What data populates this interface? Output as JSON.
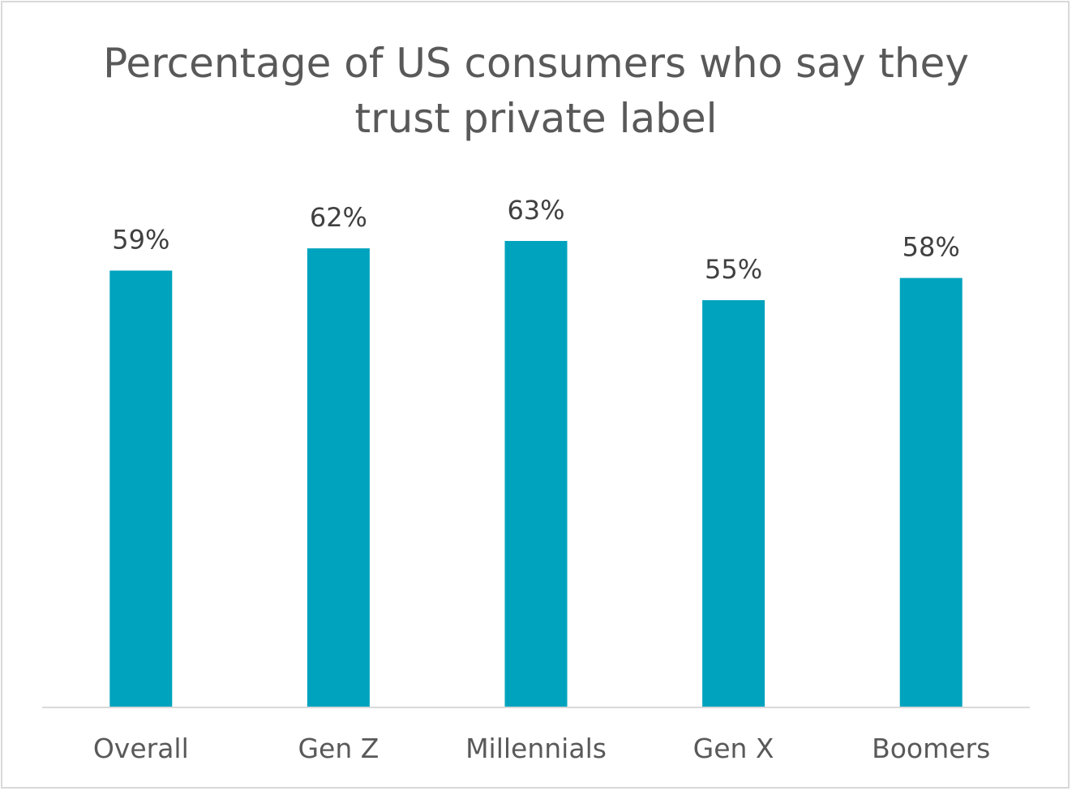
{
  "chart_data": {
    "type": "bar",
    "title_lines": [
      "Percentage of US consumers who say they",
      "trust private label"
    ],
    "categories": [
      "Overall",
      "Gen Z",
      "Millennials",
      "Gen X",
      "Boomers"
    ],
    "values": [
      59,
      62,
      63,
      55,
      58
    ],
    "data_labels": [
      "59%",
      "62%",
      "63%",
      "55%",
      "58%"
    ],
    "unit": "%",
    "ylim": [
      0,
      70
    ],
    "grid": false,
    "legend": "none",
    "bar_color": "#00a3be",
    "axis_color": "#d9d9d9"
  }
}
